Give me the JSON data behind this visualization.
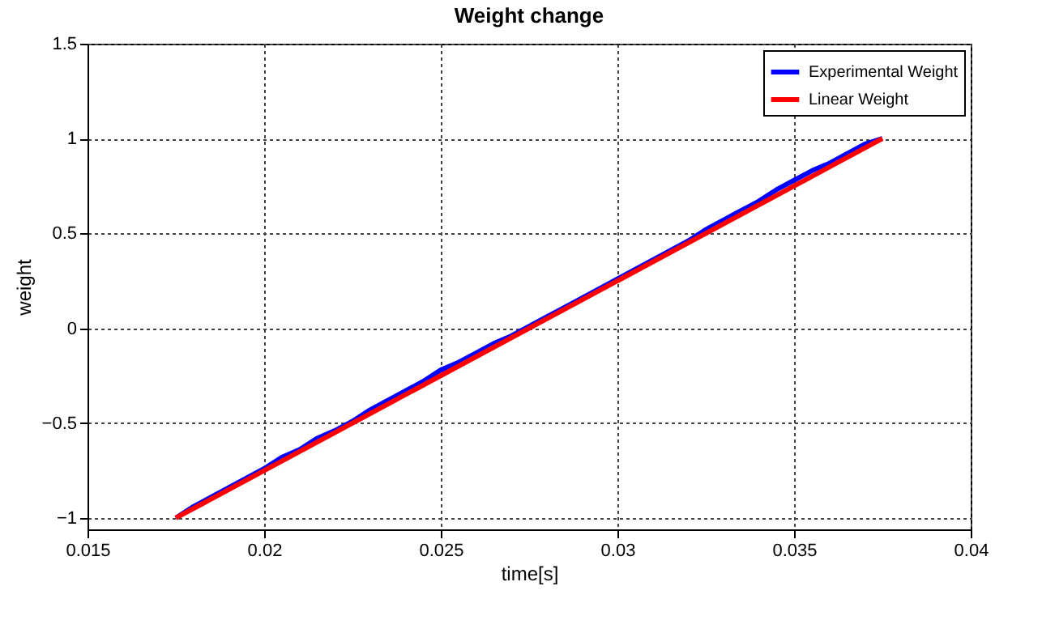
{
  "chart_data": {
    "type": "line",
    "title": "Weight change",
    "xlabel": "time[s]",
    "ylabel": "weight",
    "xlim": [
      0.015,
      0.04
    ],
    "xticks": [
      0.015,
      0.02,
      0.025,
      0.03,
      0.035,
      0.04
    ],
    "ylim": [
      -1.06,
      1.5
    ],
    "yticks": [
      -1,
      -0.5,
      0,
      0.5,
      1,
      1.5
    ],
    "grid": true,
    "legend": "top right",
    "line_style": "solid",
    "series": [
      {
        "name": "Experimental Weight",
        "color": "#0000ff",
        "x": [
          0.0175,
          0.018,
          0.0185,
          0.019,
          0.0195,
          0.02,
          0.0205,
          0.021,
          0.0215,
          0.022,
          0.0225,
          0.023,
          0.0235,
          0.024,
          0.0245,
          0.025,
          0.0255,
          0.026,
          0.0265,
          0.027,
          0.0275,
          0.028,
          0.0285,
          0.029,
          0.0295,
          0.03,
          0.0305,
          0.031,
          0.0315,
          0.032,
          0.0325,
          0.033,
          0.0335,
          0.034,
          0.0345,
          0.035,
          0.0355,
          0.036,
          0.0365,
          0.037,
          0.0375
        ],
        "values": [
          -1,
          -0.94,
          -0.89,
          -0.84,
          -0.79,
          -0.74,
          -0.68,
          -0.64,
          -0.58,
          -0.54,
          -0.49,
          -0.43,
          -0.38,
          -0.33,
          -0.28,
          -0.22,
          -0.18,
          -0.13,
          -0.08,
          -0.04,
          0.01,
          0.06,
          0.11,
          0.16,
          0.21,
          0.26,
          0.31,
          0.36,
          0.41,
          0.46,
          0.52,
          0.57,
          0.62,
          0.67,
          0.73,
          0.78,
          0.83,
          0.87,
          0.92,
          0.97,
          1
        ]
      },
      {
        "name": "Linear Weight",
        "color": "#ff0000",
        "x": [
          0.0175,
          0.0375
        ],
        "values": [
          -1,
          1
        ]
      }
    ]
  }
}
